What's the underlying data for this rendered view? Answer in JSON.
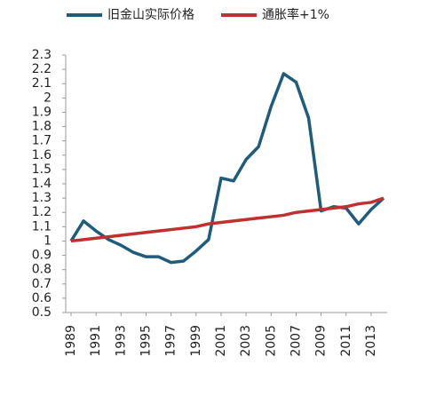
{
  "chart_data": {
    "type": "line",
    "x": [
      1989,
      1990,
      1991,
      1992,
      1993,
      1994,
      1995,
      1996,
      1997,
      1998,
      1999,
      2000,
      2001,
      2002,
      2003,
      2004,
      2005,
      2006,
      2007,
      2008,
      2009,
      2010,
      2011,
      2012,
      2013,
      2014
    ],
    "series": [
      {
        "name": "旧金山实际价格",
        "color": "#1f5c7c",
        "values": [
          1.0,
          1.14,
          1.07,
          1.01,
          0.97,
          0.92,
          0.89,
          0.89,
          0.85,
          0.86,
          0.93,
          1.01,
          1.44,
          1.42,
          1.57,
          1.66,
          1.94,
          2.17,
          2.11,
          1.86,
          1.21,
          1.24,
          1.23,
          1.12,
          1.22,
          1.3
        ]
      },
      {
        "name": "通胀率+1%",
        "color": "#c0302f",
        "values": [
          1.0,
          1.01,
          1.02,
          1.03,
          1.04,
          1.05,
          1.06,
          1.07,
          1.08,
          1.09,
          1.1,
          1.12,
          1.13,
          1.14,
          1.15,
          1.16,
          1.17,
          1.18,
          1.2,
          1.21,
          1.22,
          1.23,
          1.24,
          1.26,
          1.27,
          1.3
        ]
      }
    ],
    "xlim": [
      1989,
      2014
    ],
    "xticks": [
      1989,
      1991,
      1993,
      1995,
      1997,
      1999,
      2001,
      2003,
      2005,
      2007,
      2009,
      2011,
      2013
    ],
    "ylim": [
      0.5,
      2.3
    ],
    "yticks": [
      0.5,
      0.6,
      0.7,
      0.8,
      0.9,
      1,
      1.1,
      1.2,
      1.3,
      1.4,
      1.5,
      1.6,
      1.7,
      1.8,
      1.9,
      2,
      2.1,
      2.2,
      2.3
    ],
    "grid": false,
    "legend": "top"
  }
}
